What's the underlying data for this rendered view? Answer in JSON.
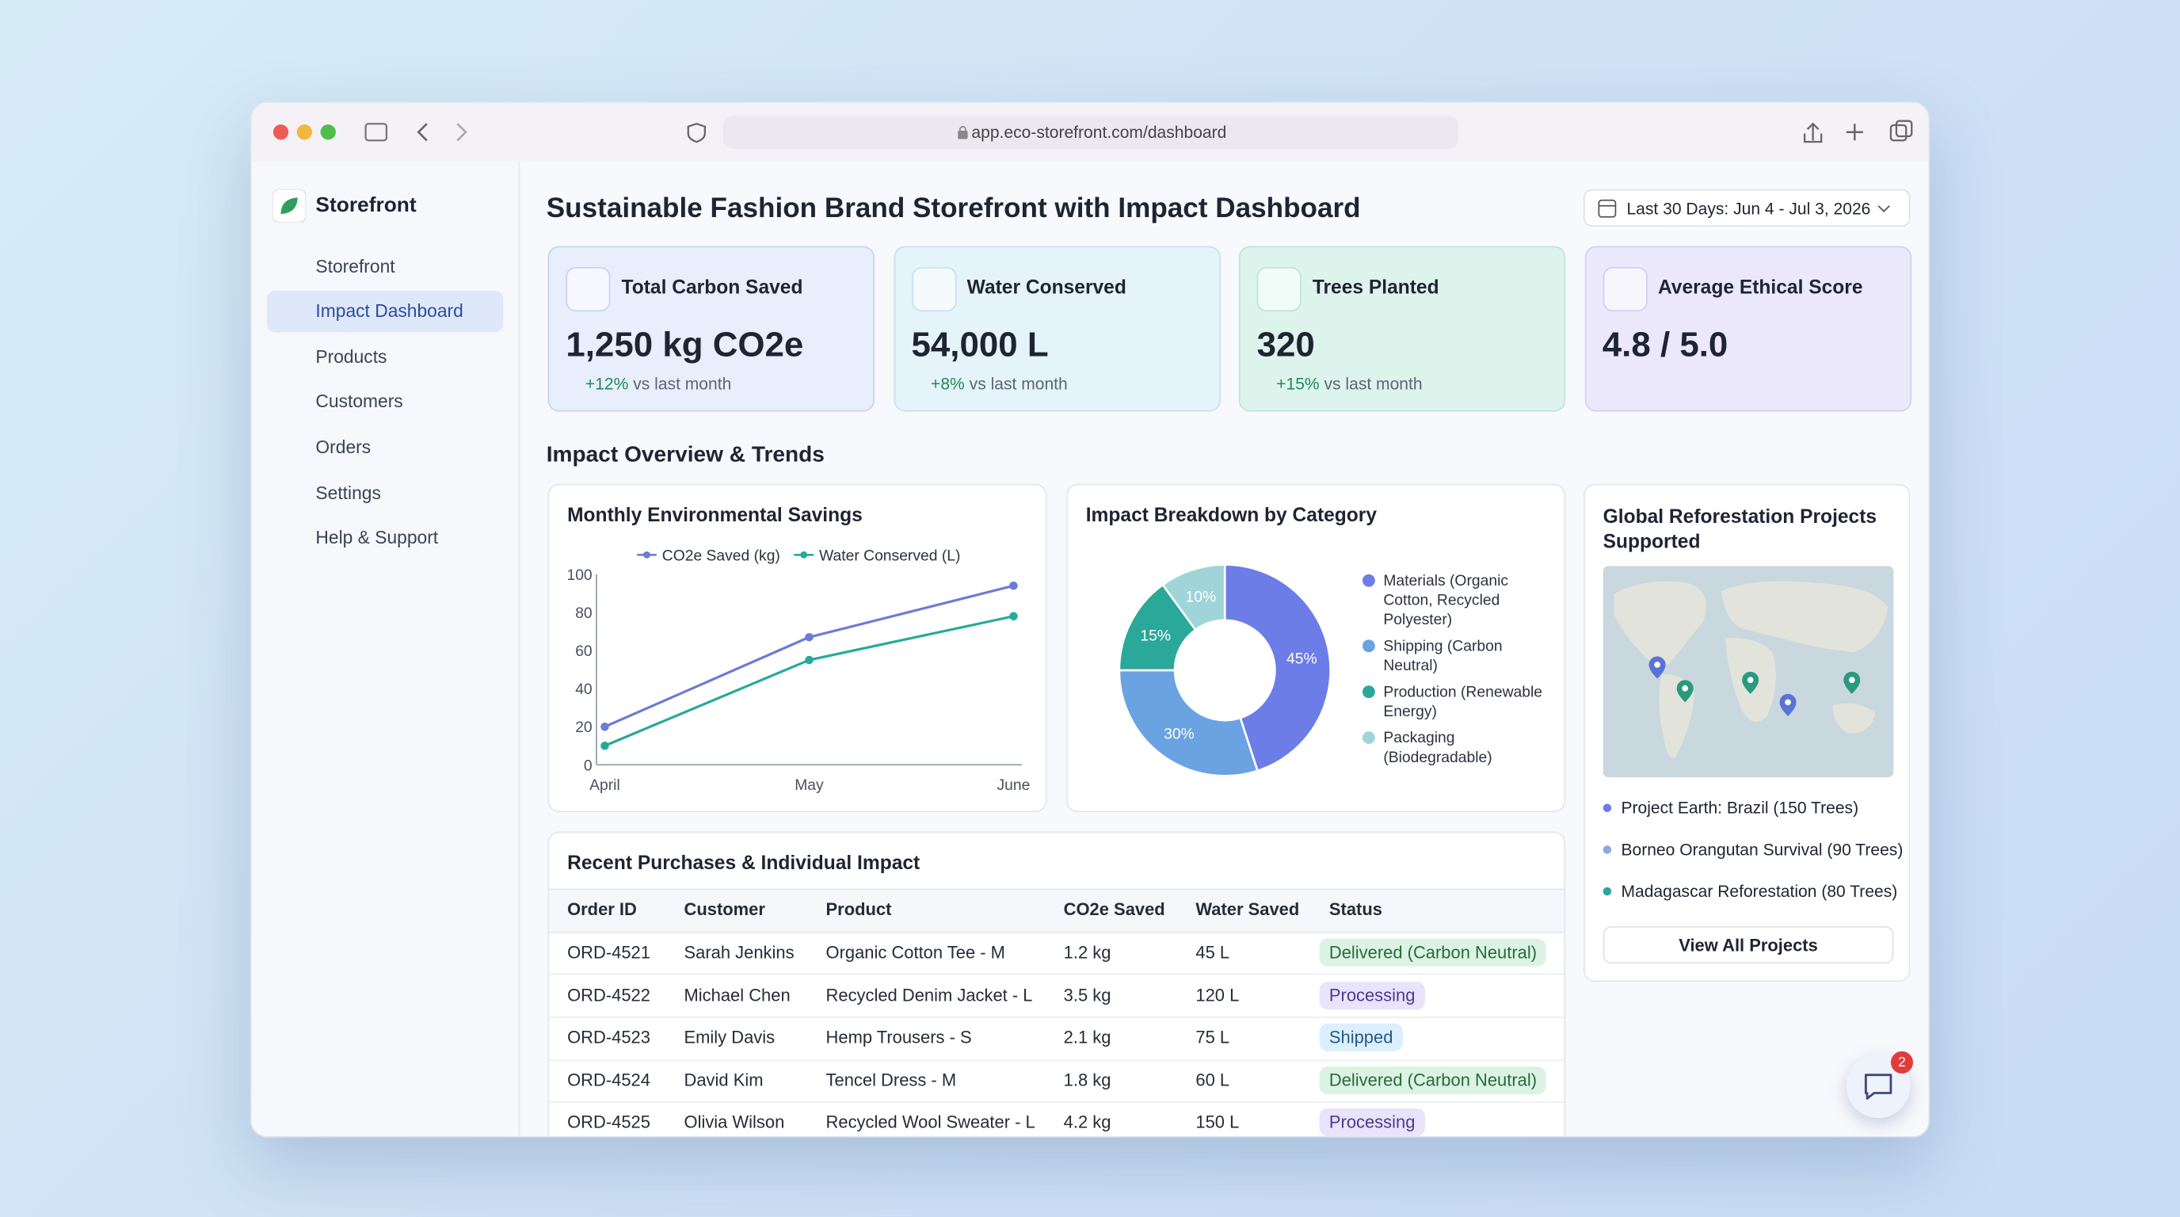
{
  "browser": {
    "url": "app.eco-storefront.com/dashboard"
  },
  "sidebar": {
    "brand": "Storefront",
    "nav": [
      "Storefront",
      "Impact Dashboard",
      "Products",
      "Customers",
      "Orders",
      "Settings",
      "Help & Support"
    ],
    "active": 1
  },
  "header": {
    "title": "Sustainable Fashion Brand Storefront with Impact Dashboard",
    "date_range": "Last 30 Days: Jun 4 - Jul 3, 2026"
  },
  "kpis": [
    {
      "label": "Total Carbon Saved",
      "value": "1,250 kg CO2e",
      "change": "+12%",
      "change_note": "vs last month",
      "color": "#e8eefc",
      "border": "#c8d4f2",
      "icon_color": "#5a74c9"
    },
    {
      "label": "Water Conserved",
      "value": "54,000 L",
      "change": "+8%",
      "change_note": "vs last month",
      "color": "#e5f3fa",
      "border": "#c6e2ef",
      "icon_color": "#3a97c4"
    },
    {
      "label": "Trees Planted",
      "value": "320",
      "change": "+15%",
      "change_note": "vs last month",
      "color": "#ddf4ec",
      "border": "#bfe6d7",
      "icon_color": "#2b9a74"
    },
    {
      "label": "Average Ethical Score",
      "value": "4.8 / 5.0",
      "color": "#ebe8fb",
      "border": "#d3cff3",
      "icon_color": "#6a5bd0"
    }
  ],
  "section_title": "Impact Overview & Trends",
  "line_chart": {
    "type": "line",
    "title": "Monthly Environmental Savings",
    "categories": [
      "April",
      "May",
      "June"
    ],
    "series": [
      {
        "name": "CO2e Saved (kg)",
        "color": "#6b7bd6",
        "values": [
          20,
          67,
          94
        ]
      },
      {
        "name": "Water Conserved (L)",
        "color": "#27a89d",
        "values": [
          10,
          55,
          78
        ]
      }
    ],
    "ylim": [
      0,
      100
    ],
    "yticks": [
      0,
      20,
      40,
      60,
      80,
      100
    ],
    "grid": false
  },
  "pie_chart": {
    "type": "donut",
    "title": "Impact Breakdown by Category",
    "categories": [
      "Materials (Organic Cotton, Recycled Polyester)",
      "Shipping (Carbon Neutral)",
      "Production (Renewable Energy)",
      "Packaging (Biodegradable)"
    ],
    "values": [
      45,
      30,
      15,
      10
    ],
    "value_labels": [
      "45%",
      "30%",
      "15%",
      "10%"
    ],
    "colors": [
      "#6c7de8",
      "#6aa2e2",
      "#2aa89a",
      "#9fd5d8"
    ]
  },
  "map": {
    "title": "Global Reforestation Projects Supported",
    "projects": [
      {
        "name": "Project Earth: Brazil (150 Trees)",
        "color": "#6c7de8"
      },
      {
        "name": "Borneo Orangutan Survival (90 Trees)",
        "color": "#8aaae0"
      },
      {
        "name": "Madagascar Reforestation (80 Trees)",
        "color": "#2aa89a"
      }
    ],
    "button": "View All Projects"
  },
  "table": {
    "title": "Recent Purchases & Individual Impact",
    "columns": [
      "Order ID",
      "Customer",
      "Product",
      "CO2e Saved",
      "Water Saved",
      "Status"
    ],
    "rows": [
      {
        "cells": [
          "ORD-4521",
          "Sarah Jenkins",
          "Organic Cotton Tee - M",
          "1.2 kg",
          "45 L",
          "Delivered (Carbon Neutral)"
        ],
        "status_color": "#dcf3e4",
        "status_text_color": "#266a3b"
      },
      {
        "cells": [
          "ORD-4522",
          "Michael Chen",
          "Recycled Denim Jacket - L",
          "3.5 kg",
          "120 L",
          "Processing"
        ],
        "status_color": "#e9e3fb",
        "status_text_color": "#4a3a8c"
      },
      {
        "cells": [
          "ORD-4523",
          "Emily Davis",
          "Hemp Trousers - S",
          "2.1 kg",
          "75 L",
          "Shipped"
        ],
        "status_color": "#dcefff",
        "status_text_color": "#22598a"
      },
      {
        "cells": [
          "ORD-4524",
          "David Kim",
          "Tencel Dress - M",
          "1.8 kg",
          "60 L",
          "Delivered (Carbon Neutral)"
        ],
        "status_color": "#dcf3e4",
        "status_text_color": "#266a3b"
      },
      {
        "cells": [
          "ORD-4525",
          "Olivia Wilson",
          "Recycled Wool Sweater - L",
          "4.2 kg",
          "150 L",
          "Processing"
        ],
        "status_color": "#e9e3fb",
        "status_text_color": "#4a3a8c"
      }
    ]
  },
  "chat": {
    "badge": 2
  }
}
